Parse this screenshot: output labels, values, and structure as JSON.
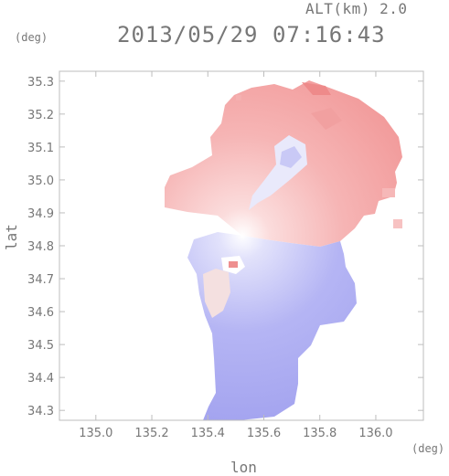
{
  "header": {
    "altitude_label": "ALT(km) 2.0",
    "timestamp": "2013/05/29 07:16:43"
  },
  "axes": {
    "lat_unit": "(deg)",
    "lon_unit": "(deg)",
    "ylabel": "lat",
    "xlabel": "lon"
  },
  "chart_data": {
    "type": "heatmap",
    "title": "",
    "xlabel": "lon",
    "ylabel": "lat",
    "xlim": [
      134.87,
      136.17
    ],
    "ylim": [
      34.27,
      35.33
    ],
    "x_ticks": [
      "135.0",
      "135.2",
      "135.4",
      "135.6",
      "135.8",
      "136.0"
    ],
    "y_ticks": [
      "35.3",
      "35.2",
      "35.1",
      "35.0",
      "34.9",
      "34.8",
      "34.7",
      "34.6",
      "34.5",
      "34.4",
      "34.3"
    ],
    "radar_center": [
      135.53,
      34.82
    ],
    "colors": {
      "positive": "#f4a6a6",
      "negative": "#a9a9f2",
      "neutral": "#f7f0f0"
    },
    "grid": false,
    "legend": "none"
  }
}
